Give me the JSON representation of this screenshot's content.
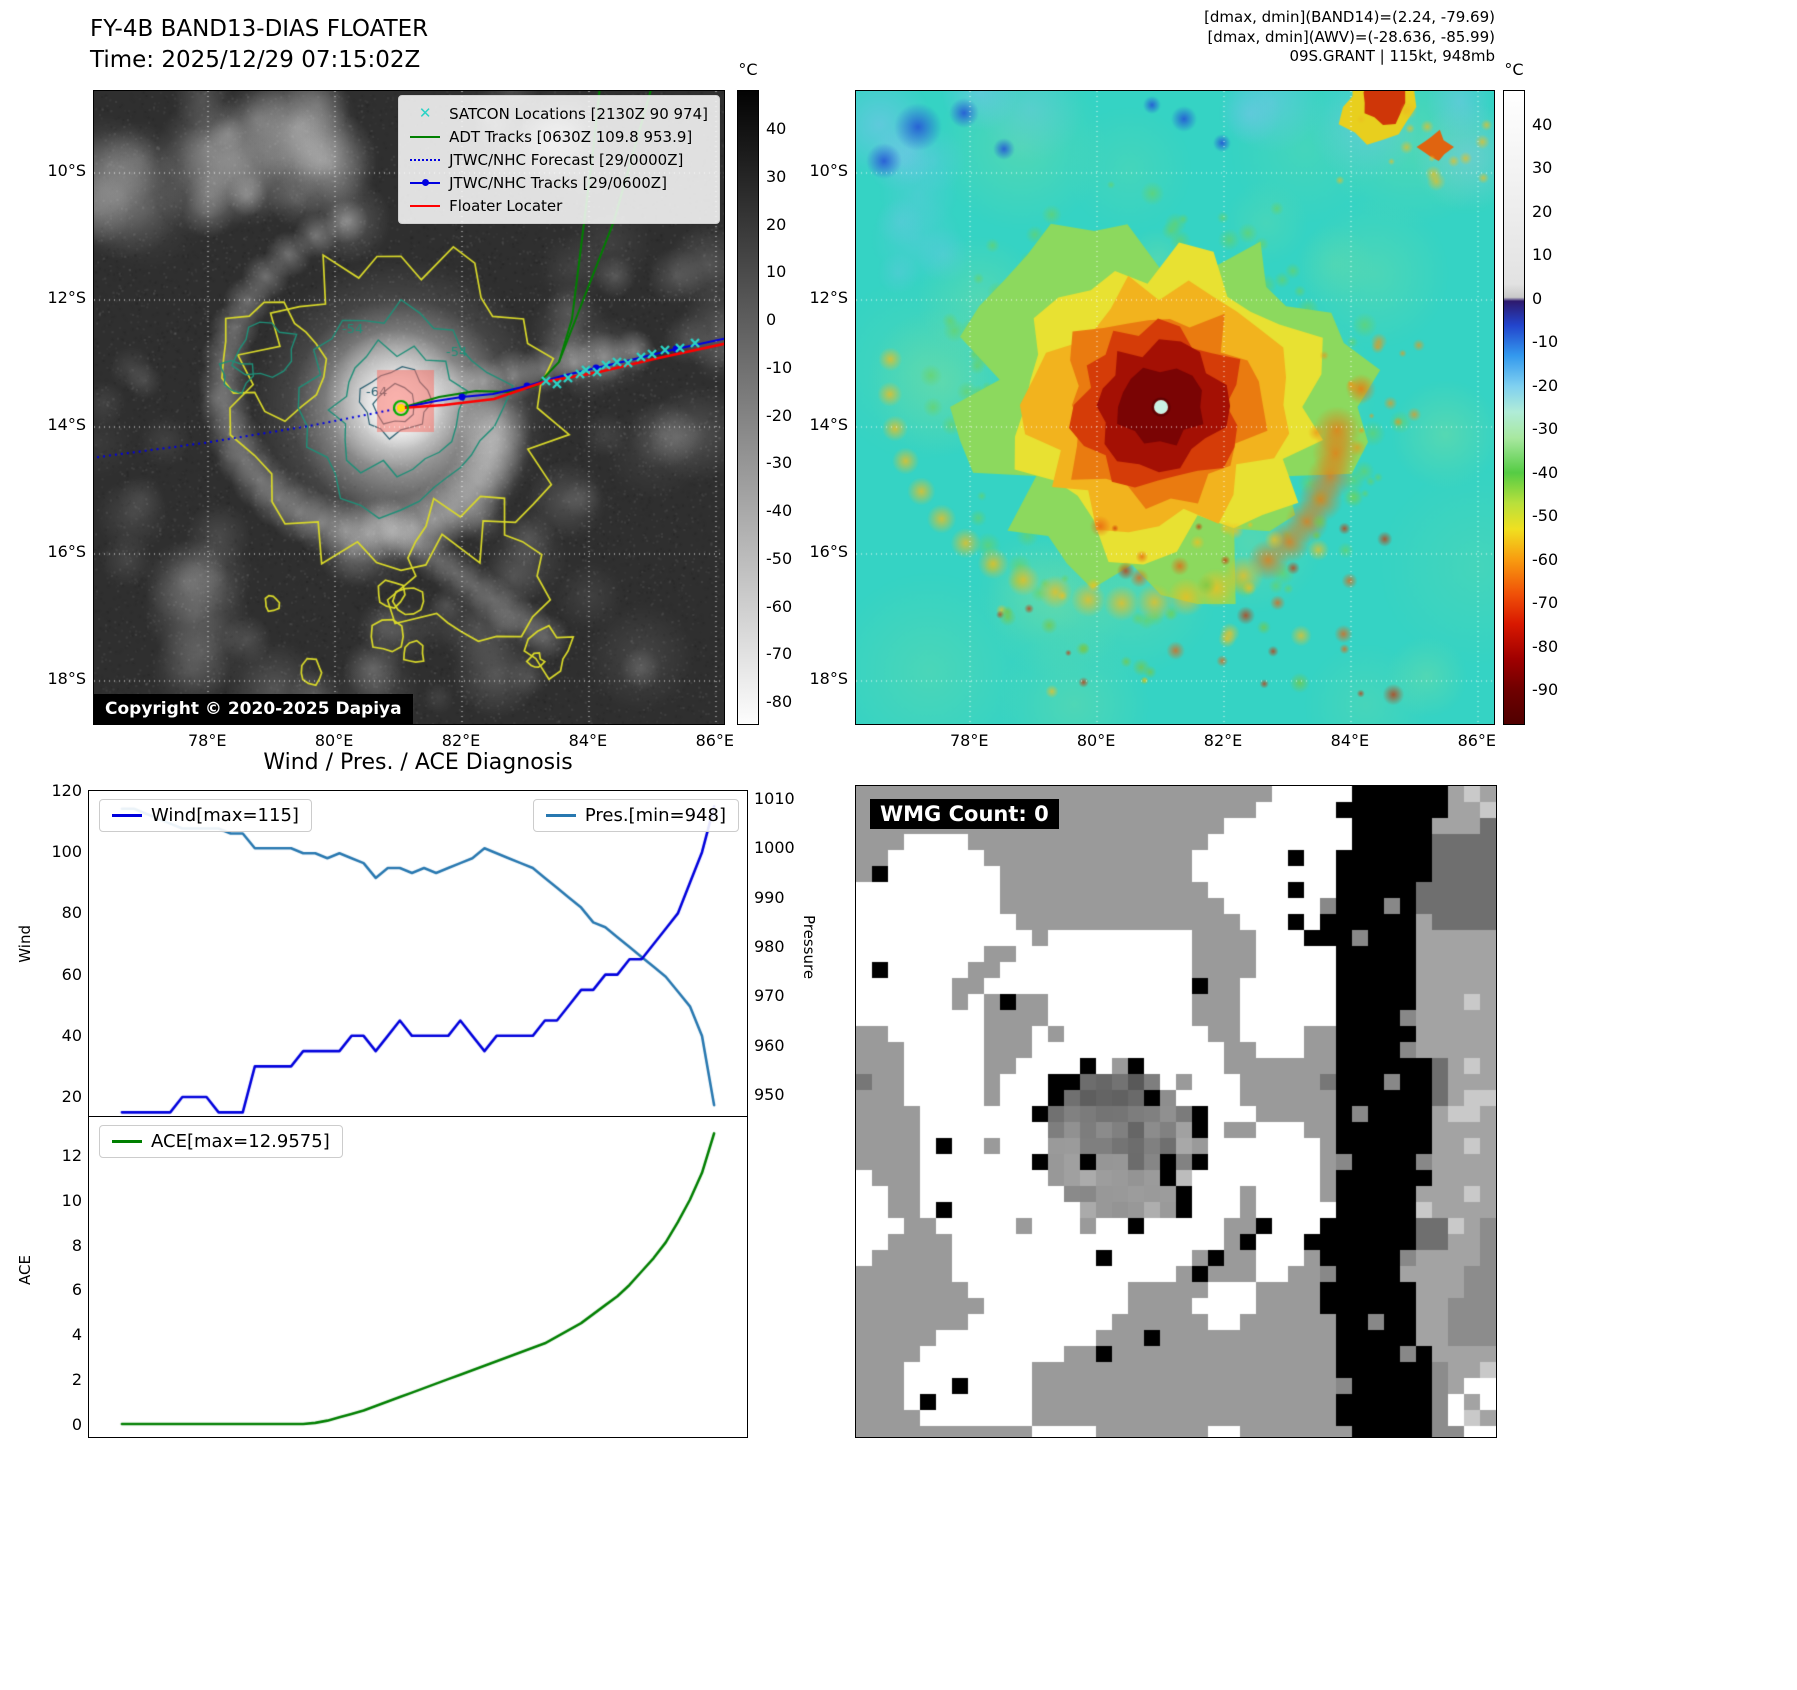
{
  "band13": {
    "title": "FY-4B BAND13-DIAS FLOATER",
    "time": "Time: 2025/12/29 07:15:02Z",
    "copyright": "Copyright © 2020-2025 Dapiya",
    "colorbar_unit": "°C",
    "colorbar_ticks": [
      40,
      30,
      20,
      10,
      0,
      -10,
      -20,
      -30,
      -40,
      -50,
      -60,
      -70,
      -80
    ],
    "lat_ticks": [
      "10°S",
      "12°S",
      "14°S",
      "16°S",
      "18°S"
    ],
    "lon_ticks": [
      "78°E",
      "80°E",
      "82°E",
      "84°E",
      "86°E"
    ],
    "contour_labels": [
      "-54",
      "-64"
    ],
    "legend": [
      {
        "label": "SATCON Locations [2130Z 90 974]",
        "type": "marker-x",
        "color": "#2bd3c6"
      },
      {
        "label": "ADT Tracks [0630Z 109.8 953.9]",
        "type": "line",
        "color": "#008000"
      },
      {
        "label": "JTWC/NHC Forecast [29/0000Z]",
        "type": "dotted",
        "color": "#0000e0"
      },
      {
        "label": "JTWC/NHC Tracks [29/0600Z]",
        "type": "line-dot",
        "color": "#0000e0"
      },
      {
        "label": "Floater Locater",
        "type": "line",
        "color": "#ff0000"
      }
    ]
  },
  "enhanced": {
    "header": [
      "[dmax, dmin](BAND14)=(2.24, -79.69)",
      "[dmax, dmin](AWV)=(-28.636, -85.99)",
      "09S.GRANT | 115kt, 948mb"
    ],
    "colorbar_unit": "°C",
    "colorbar_ticks": [
      40,
      30,
      20,
      10,
      0,
      -10,
      -20,
      -30,
      -40,
      -50,
      -60,
      -70,
      -80,
      -90
    ],
    "lat_ticks": [
      "10°S",
      "12°S",
      "14°S",
      "16°S",
      "18°S"
    ],
    "lon_ticks": [
      "78°E",
      "80°E",
      "82°E",
      "84°E",
      "86°E"
    ]
  },
  "diagnosis": {
    "title": "Wind / Pres. / ACE Diagnosis",
    "legend_wind": "Wind[max=115]",
    "legend_pres": "Pres.[min=948]",
    "legend_ace": "ACE[max=12.9575]"
  },
  "wmg": {
    "label": "WMG Count: 0"
  },
  "chart_data": [
    {
      "type": "line",
      "title": "Wind / Pres. / ACE Diagnosis",
      "left_axis": {
        "label": "Wind",
        "ticks": [
          20,
          40,
          60,
          80,
          100,
          120
        ],
        "range": [
          13.8,
          120
        ]
      },
      "right_axis": {
        "label": "Pressure",
        "ticks": [
          950,
          960,
          970,
          980,
          990,
          1000,
          1010
        ],
        "range": [
          945.8,
          1011.6
        ]
      },
      "series": [
        {
          "name": "Wind[max=115]",
          "color": "#0000dd",
          "axis": "left",
          "max": 115,
          "values": [
            15,
            15,
            15,
            15,
            15,
            20,
            20,
            20,
            15,
            15,
            15,
            30,
            30,
            30,
            30,
            35,
            35,
            35,
            35,
            40,
            40,
            35,
            40,
            45,
            40,
            40,
            40,
            40,
            45,
            40,
            35,
            40,
            40,
            40,
            40,
            45,
            45,
            50,
            55,
            55,
            60,
            60,
            65,
            65,
            70,
            75,
            80,
            90,
            100,
            115
          ]
        },
        {
          "name": "Pres.[min=948]",
          "color": "#2878b0",
          "axis": "right",
          "min": 948,
          "values": [
            1008,
            1008,
            1007,
            1006,
            1005,
            1004,
            1004,
            1004,
            1004,
            1003,
            1003,
            1000,
            1000,
            1000,
            1000,
            999,
            999,
            998,
            999,
            998,
            997,
            994,
            996,
            996,
            995,
            996,
            995,
            996,
            997,
            998,
            1000,
            999,
            998,
            997,
            996,
            994,
            992,
            990,
            988,
            985,
            984,
            982,
            980,
            978,
            976,
            974,
            971,
            968,
            962,
            948
          ]
        }
      ]
    },
    {
      "type": "line",
      "left_axis": {
        "label": "ACE",
        "ticks": [
          0,
          2,
          4,
          6,
          8,
          10,
          12
        ],
        "range": [
          -0.58,
          13.69
        ]
      },
      "series": [
        {
          "name": "ACE[max=12.9575]",
          "color": "#007f00",
          "max": 12.9575,
          "values": [
            0,
            0,
            0,
            0,
            0,
            0,
            0,
            0,
            0,
            0,
            0,
            0,
            0,
            0,
            0,
            0,
            0.05,
            0.15,
            0.3,
            0.45,
            0.6,
            0.8,
            1.0,
            1.2,
            1.4,
            1.6,
            1.8,
            2.0,
            2.2,
            2.4,
            2.6,
            2.8,
            3.0,
            3.2,
            3.4,
            3.6,
            3.9,
            4.2,
            4.5,
            4.9,
            5.3,
            5.7,
            6.2,
            6.8,
            7.4,
            8.1,
            9.0,
            10.0,
            11.2,
            12.9575
          ]
        }
      ]
    }
  ]
}
